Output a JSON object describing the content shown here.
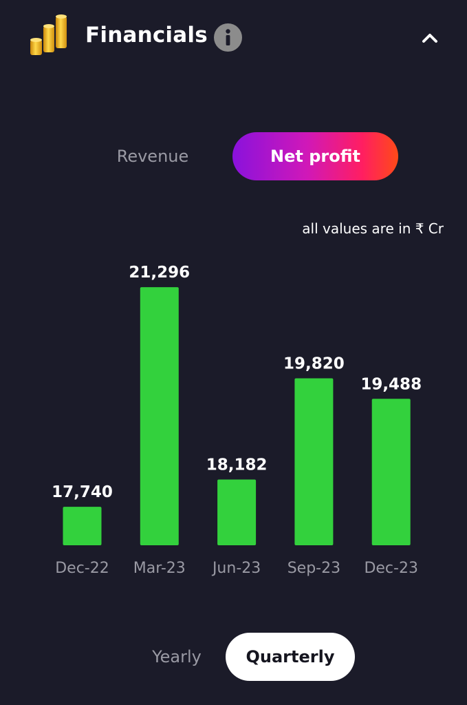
{
  "header": {
    "title": "Financials",
    "info_icon": "info-icon",
    "collapse_icon": "chevron-up-icon",
    "logo_icon": "gold-coins-icon"
  },
  "metric_toggle": {
    "options": [
      "Revenue",
      "Net profit"
    ],
    "selected": "Net profit"
  },
  "unit_note": "all values are in ₹ Cr",
  "period_toggle": {
    "options": [
      "Yearly",
      "Quarterly"
    ],
    "selected": "Quarterly"
  },
  "colors": {
    "background": "#1b1b29",
    "bar": "#33d13d",
    "gradient_start": "#8a12dc",
    "gradient_end": "#ff4a18"
  },
  "chart_data": {
    "type": "bar",
    "categories": [
      "Dec-22",
      "Mar-23",
      "Jun-23",
      "Sep-23",
      "Dec-23"
    ],
    "values": [
      17740,
      21296,
      18182,
      19820,
      19488
    ],
    "value_labels": [
      "17,740",
      "21,296",
      "18,182",
      "19,820",
      "19,488"
    ],
    "title": "",
    "xlabel": "",
    "ylabel": "",
    "grid": false,
    "legend": "none"
  }
}
